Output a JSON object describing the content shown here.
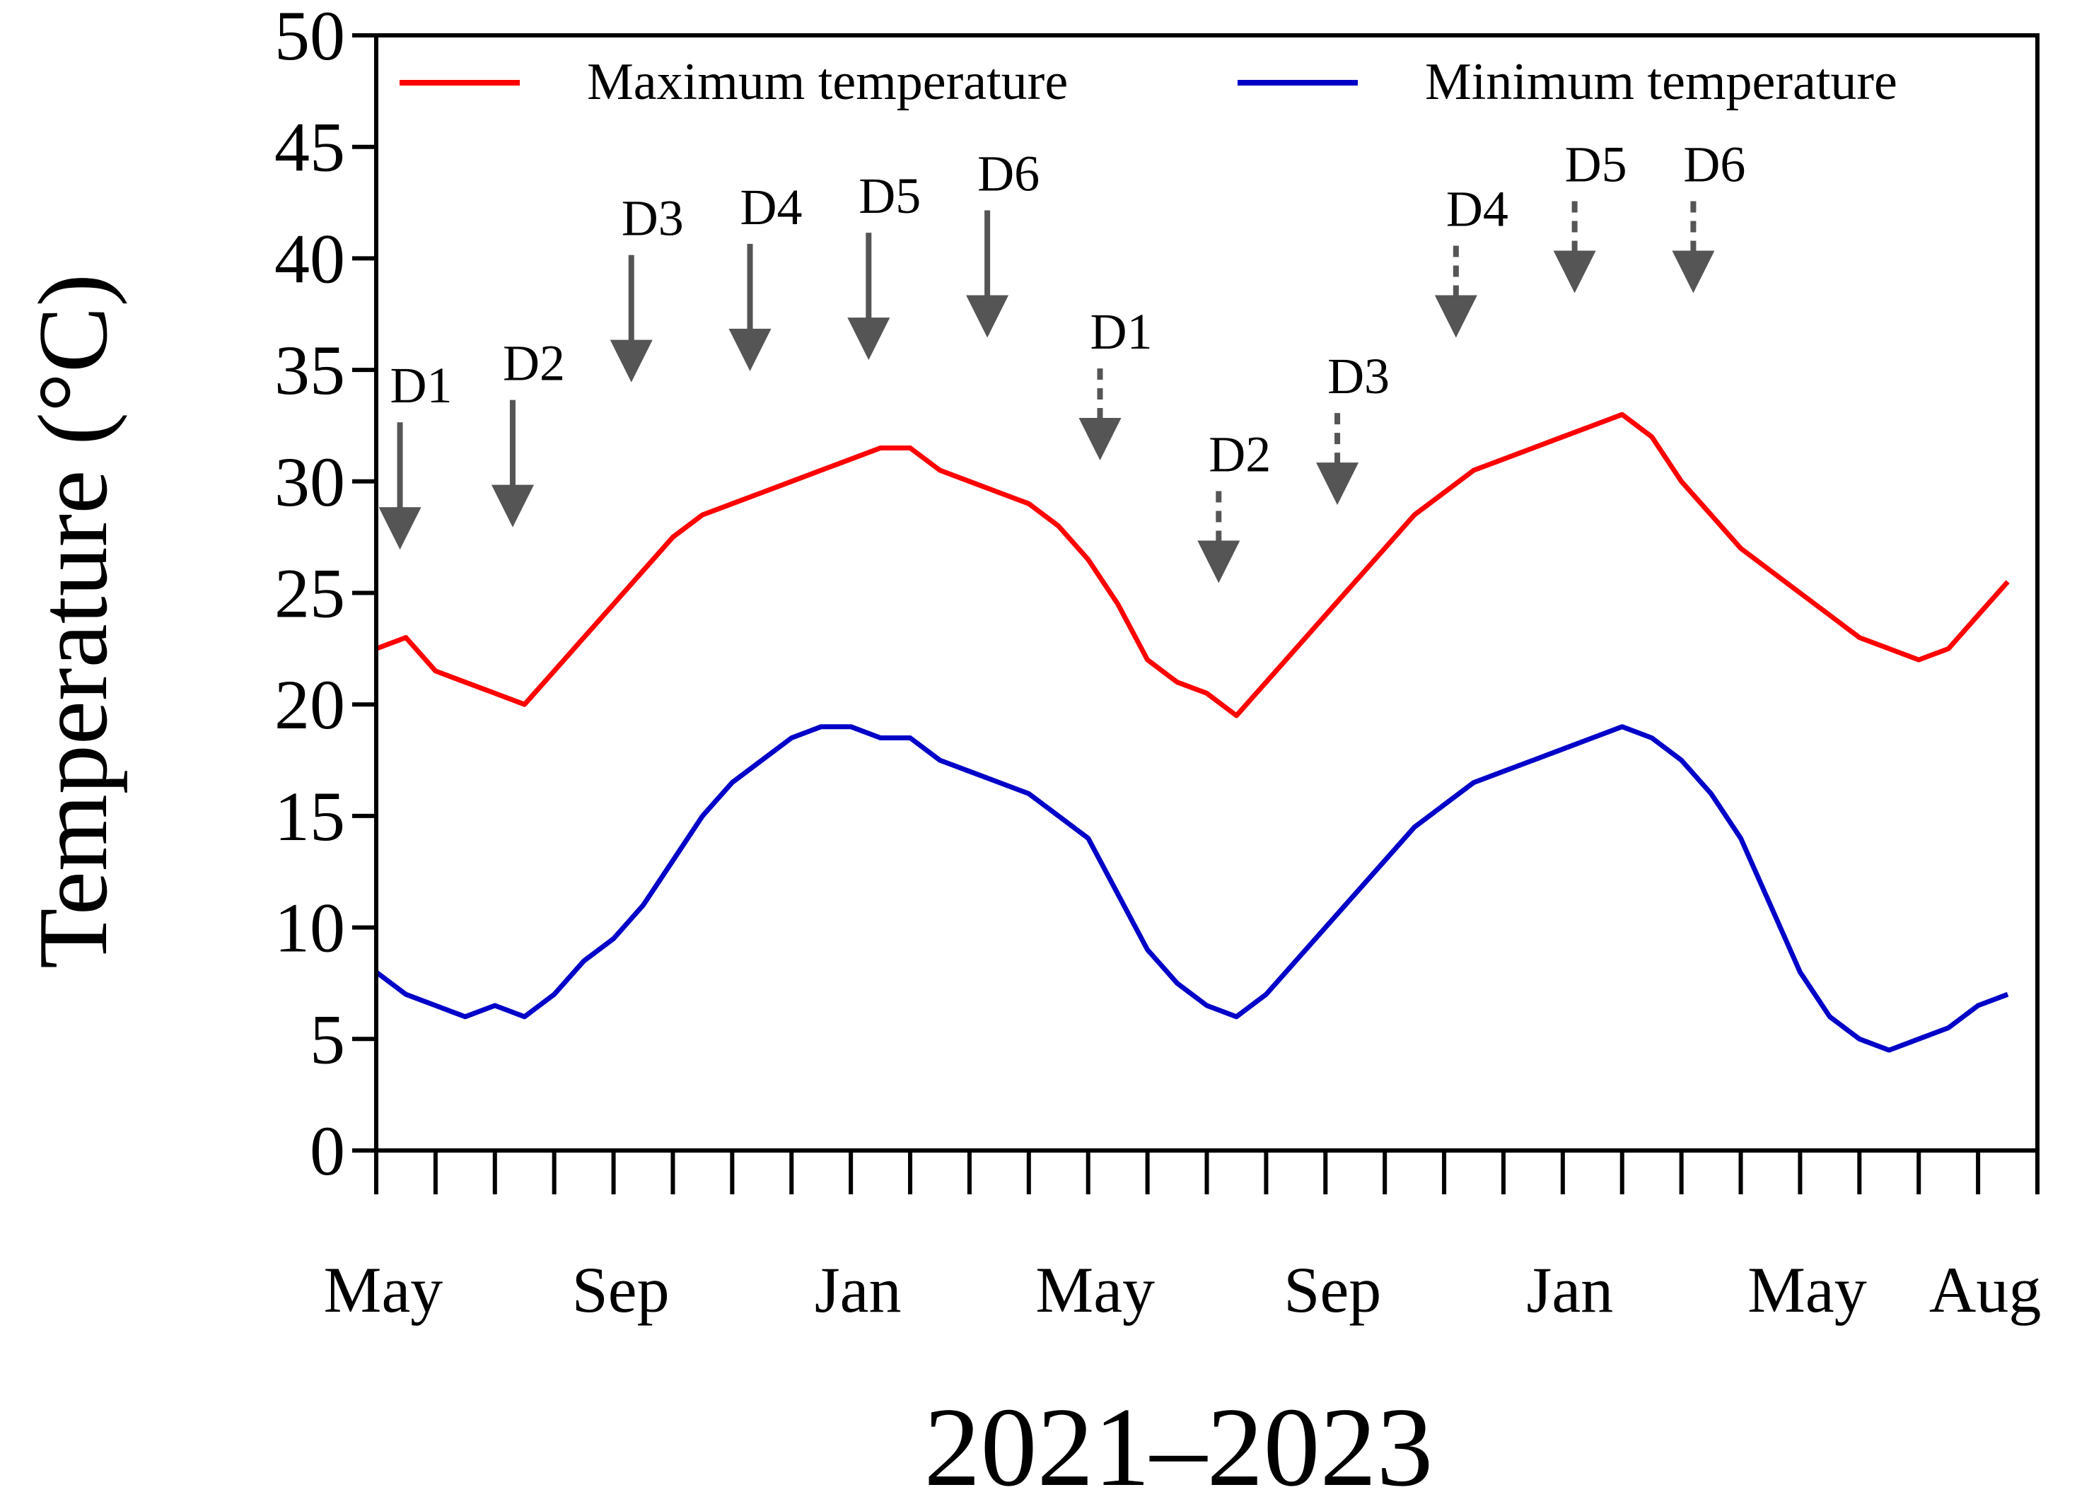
{
  "chart_data": {
    "type": "line",
    "title": "",
    "xlabel": "2021–2023",
    "ylabel": "Temperature (°C)",
    "ylim": [
      0,
      50
    ],
    "yticks": [
      0,
      5,
      10,
      15,
      20,
      25,
      30,
      35,
      40,
      45,
      50
    ],
    "xlim": [
      0,
      28
    ],
    "x_unit": "months since 1 May 2021",
    "xtick_labels": [
      {
        "label": "May",
        "x": 0
      },
      {
        "label": "Sep",
        "x": 4
      },
      {
        "label": "Jan",
        "x": 8
      },
      {
        "label": "May",
        "x": 12
      },
      {
        "label": "Sep",
        "x": 16
      },
      {
        "label": "Jan",
        "x": 20
      },
      {
        "label": "May",
        "x": 24
      },
      {
        "label": "Aug",
        "x": 27
      }
    ],
    "minor_tick_count": 28,
    "legend": {
      "position": "top",
      "entries": [
        "Maximum temperature",
        "Minimum temperature"
      ]
    },
    "series": [
      {
        "name": "Maximum temperature",
        "color": "#ff0000",
        "x": [
          0,
          0.5,
          1,
          1.5,
          2,
          2.5,
          3,
          3.5,
          4,
          4.5,
          5,
          5.5,
          6,
          6.5,
          7,
          7.5,
          8,
          8.5,
          9,
          9.5,
          10,
          10.5,
          11,
          11.5,
          12,
          12.5,
          13,
          13.5,
          14,
          14.5,
          15,
          15.5,
          16,
          16.5,
          17,
          17.5,
          18,
          18.5,
          19,
          19.5,
          20,
          20.5,
          21,
          21.5,
          22,
          22.5,
          23,
          23.5,
          24,
          24.5,
          25,
          25.5,
          26,
          26.5,
          27,
          27.5
        ],
        "values": [
          22.5,
          23,
          21.5,
          21,
          20.5,
          20,
          21.5,
          23,
          24.5,
          26,
          27.5,
          28.5,
          29,
          29.5,
          30,
          30.5,
          31,
          31.5,
          31.5,
          30.5,
          30,
          29.5,
          29,
          28,
          26.5,
          24.5,
          22,
          21,
          20.5,
          19.5,
          21,
          22.5,
          24,
          25.5,
          27,
          28.5,
          29.5,
          30.5,
          31,
          31.5,
          32,
          32.5,
          33,
          32,
          30,
          28.5,
          27,
          26,
          25,
          24,
          23,
          22.5,
          22,
          22.5,
          24,
          25.5
        ]
      },
      {
        "name": "Minimum temperature",
        "color": "#0000c8",
        "x": [
          0,
          0.5,
          1,
          1.5,
          2,
          2.5,
          3,
          3.5,
          4,
          4.5,
          5,
          5.5,
          6,
          6.5,
          7,
          7.5,
          8,
          8.5,
          9,
          9.5,
          10,
          10.5,
          11,
          11.5,
          12,
          12.5,
          13,
          13.5,
          14,
          14.5,
          15,
          15.5,
          16,
          16.5,
          17,
          17.5,
          18,
          18.5,
          19,
          19.5,
          20,
          20.5,
          21,
          21.5,
          22,
          22.5,
          23,
          23.5,
          24,
          24.5,
          25,
          25.5,
          26,
          26.5,
          27,
          27.5
        ],
        "values": [
          8,
          7,
          6.5,
          6,
          6.5,
          6,
          7,
          8.5,
          9.5,
          11,
          13,
          15,
          16.5,
          17.5,
          18.5,
          19,
          19,
          18.5,
          18.5,
          17.5,
          17,
          16.5,
          16,
          15,
          14,
          11.5,
          9,
          7.5,
          6.5,
          6,
          7,
          8.5,
          10,
          11.5,
          13,
          14.5,
          15.5,
          16.5,
          17,
          17.5,
          18,
          18.5,
          19,
          18.5,
          17.5,
          16,
          14,
          11,
          8,
          6,
          5,
          4.5,
          5,
          5.5,
          6.5,
          7
        ]
      }
    ],
    "annotations": [
      {
        "label": "D1",
        "x": 0.4,
        "tip_y": 26.5,
        "style": "solid"
      },
      {
        "label": "D2",
        "x": 2.3,
        "tip_y": 27.5,
        "style": "solid"
      },
      {
        "label": "D3",
        "x": 4.3,
        "tip_y": 34,
        "style": "solid"
      },
      {
        "label": "D4",
        "x": 6.3,
        "tip_y": 34.5,
        "style": "solid"
      },
      {
        "label": "D5",
        "x": 8.3,
        "tip_y": 35,
        "style": "solid"
      },
      {
        "label": "D6",
        "x": 10.3,
        "tip_y": 36,
        "style": "solid"
      },
      {
        "label": "D1",
        "x": 12.2,
        "tip_y": 30.5,
        "style": "dashed"
      },
      {
        "label": "D2",
        "x": 14.2,
        "tip_y": 25,
        "style": "dashed"
      },
      {
        "label": "D3",
        "x": 16.2,
        "tip_y": 28.5,
        "style": "dashed"
      },
      {
        "label": "D4",
        "x": 18.2,
        "tip_y": 36,
        "style": "dashed"
      },
      {
        "label": "D5",
        "x": 20.2,
        "tip_y": 38,
        "style": "dashed"
      },
      {
        "label": "D6",
        "x": 22.2,
        "tip_y": 38,
        "style": "dashed"
      }
    ]
  }
}
